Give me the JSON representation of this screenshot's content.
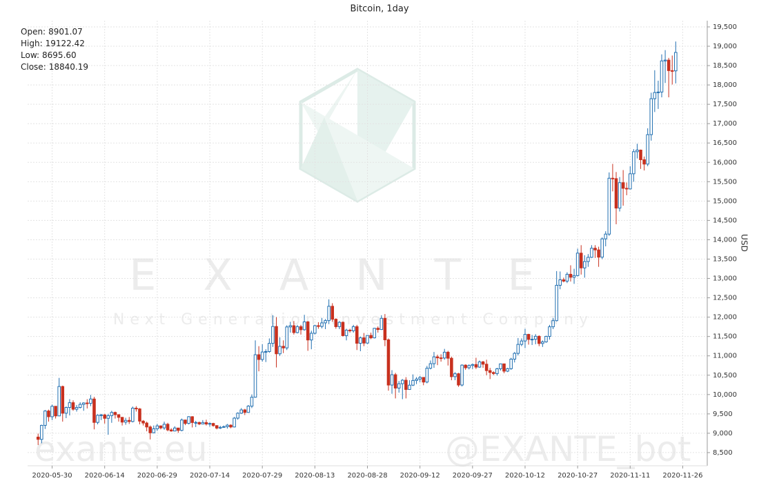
{
  "chart_data": {
    "type": "candlestick",
    "title": "Bitcoin, 1day",
    "y_label": "USD",
    "summary": {
      "labels": [
        "Open:",
        "High:",
        "Low:",
        "Close:"
      ],
      "values": [
        8901.07,
        19122.42,
        8695.6,
        18840.19
      ],
      "value_labels": [
        "8901.07",
        "19122.42",
        "8695.60",
        "18840.19"
      ]
    },
    "watermarks": {
      "brand": "EXANTE",
      "tagline": "Next Generation Investment Company",
      "site": "exante.eu",
      "bot": "@EXANTE_bot"
    },
    "colors": {
      "up": "#1f6eb0",
      "down": "#c8301e"
    },
    "grid": true,
    "x": [
      "2020-05-26",
      "2020-05-27",
      "2020-05-28",
      "2020-05-29",
      "2020-05-30",
      "2020-05-31",
      "2020-06-01",
      "2020-06-02",
      "2020-06-03",
      "2020-06-04",
      "2020-06-05",
      "2020-06-06",
      "2020-06-07",
      "2020-06-08",
      "2020-06-09",
      "2020-06-10",
      "2020-06-11",
      "2020-06-12",
      "2020-06-13",
      "2020-06-14",
      "2020-06-15",
      "2020-06-16",
      "2020-06-17",
      "2020-06-18",
      "2020-06-19",
      "2020-06-20",
      "2020-06-21",
      "2020-06-22",
      "2020-06-23",
      "2020-06-24",
      "2020-06-25",
      "2020-06-26",
      "2020-06-27",
      "2020-06-28",
      "2020-06-29",
      "2020-06-30",
      "2020-07-01",
      "2020-07-02",
      "2020-07-03",
      "2020-07-04",
      "2020-07-05",
      "2020-07-06",
      "2020-07-07",
      "2020-07-08",
      "2020-07-09",
      "2020-07-10",
      "2020-07-11",
      "2020-07-12",
      "2020-07-13",
      "2020-07-14",
      "2020-07-15",
      "2020-07-16",
      "2020-07-17",
      "2020-07-18",
      "2020-07-19",
      "2020-07-20",
      "2020-07-21",
      "2020-07-22",
      "2020-07-23",
      "2020-07-24",
      "2020-07-25",
      "2020-07-26",
      "2020-07-27",
      "2020-07-28",
      "2020-07-29",
      "2020-07-30",
      "2020-07-31",
      "2020-08-01",
      "2020-08-02",
      "2020-08-03",
      "2020-08-04",
      "2020-08-05",
      "2020-08-06",
      "2020-08-07",
      "2020-08-08",
      "2020-08-09",
      "2020-08-10",
      "2020-08-11",
      "2020-08-12",
      "2020-08-13",
      "2020-08-14",
      "2020-08-15",
      "2020-08-16",
      "2020-08-17",
      "2020-08-18",
      "2020-08-19",
      "2020-08-20",
      "2020-08-21",
      "2020-08-22",
      "2020-08-23",
      "2020-08-24",
      "2020-08-25",
      "2020-08-26",
      "2020-08-27",
      "2020-08-28",
      "2020-08-29",
      "2020-08-30",
      "2020-08-31",
      "2020-09-01",
      "2020-09-02",
      "2020-09-03",
      "2020-09-04",
      "2020-09-05",
      "2020-09-06",
      "2020-09-07",
      "2020-09-08",
      "2020-09-09",
      "2020-09-10",
      "2020-09-11",
      "2020-09-12",
      "2020-09-13",
      "2020-09-14",
      "2020-09-15",
      "2020-09-16",
      "2020-09-17",
      "2020-09-18",
      "2020-09-19",
      "2020-09-20",
      "2020-09-21",
      "2020-09-22",
      "2020-09-23",
      "2020-09-24",
      "2020-09-25",
      "2020-09-26",
      "2020-09-27",
      "2020-09-28",
      "2020-09-29",
      "2020-09-30",
      "2020-10-01",
      "2020-10-02",
      "2020-10-03",
      "2020-10-04",
      "2020-10-05",
      "2020-10-06",
      "2020-10-07",
      "2020-10-08",
      "2020-10-09",
      "2020-10-10",
      "2020-10-11",
      "2020-10-12",
      "2020-10-13",
      "2020-10-14",
      "2020-10-15",
      "2020-10-16",
      "2020-10-17",
      "2020-10-18",
      "2020-10-19",
      "2020-10-20",
      "2020-10-21",
      "2020-10-22",
      "2020-10-23",
      "2020-10-24",
      "2020-10-25",
      "2020-10-26",
      "2020-10-27",
      "2020-10-28",
      "2020-10-29",
      "2020-10-30",
      "2020-10-31",
      "2020-11-01",
      "2020-11-02",
      "2020-11-03",
      "2020-11-04",
      "2020-11-05",
      "2020-11-06",
      "2020-11-07",
      "2020-11-08",
      "2020-11-09",
      "2020-11-10",
      "2020-11-11",
      "2020-11-12",
      "2020-11-13",
      "2020-11-14",
      "2020-11-15",
      "2020-11-16",
      "2020-11-17",
      "2020-11-18",
      "2020-11-19",
      "2020-11-20",
      "2020-11-21",
      "2020-11-22",
      "2020-11-23",
      "2020-11-24"
    ],
    "open": [
      8901.07,
      8842,
      9204,
      9575,
      9427,
      9697,
      9448,
      10208,
      9518,
      9666,
      9790,
      9621,
      9666,
      9746,
      9782,
      9772,
      9885,
      9280,
      9465,
      9474,
      9386,
      9454,
      9538,
      9480,
      9411,
      9288,
      9332,
      9303,
      9648,
      9629,
      9313,
      9264,
      9162,
      9012,
      9116,
      9190,
      9138,
      9232,
      9086,
      9058,
      9135,
      9073,
      9342,
      9253,
      9428,
      9277,
      9278,
      9240,
      9277,
      9239,
      9253,
      9197,
      9133,
      9154,
      9170,
      9209,
      9162,
      9390,
      9518,
      9603,
      9538,
      9700,
      9931,
      11029,
      10906,
      11100,
      11111,
      11323,
      11759,
      11053,
      11246,
      11205,
      11747,
      11779,
      11601,
      11754,
      11675,
      11878,
      11410,
      11584,
      11780,
      11760,
      11852,
      11911,
      12281,
      11946,
      11754,
      11866,
      11522,
      11664,
      11647,
      11754,
      11325,
      11466,
      11330,
      11527,
      11465,
      11712,
      11680,
      11970,
      11414,
      10245,
      10512,
      10167,
      10280,
      10370,
      10131,
      10242,
      10363,
      10400,
      10443,
      10323,
      10680,
      10797,
      10974,
      10948,
      10944,
      11094,
      10938,
      10462,
      10538,
      10246,
      10760,
      10692,
      10750,
      10775,
      10709,
      10844,
      10784,
      10619,
      10570,
      10542,
      10666,
      10793,
      10604,
      10668,
      10915,
      11064,
      11296,
      11384,
      11555,
      11425,
      11429,
      11505,
      11319,
      11360,
      11503,
      11751,
      11909,
      12823,
      12965,
      12931,
      13108,
      13031,
      13075,
      13654,
      13272,
      13437,
      13546,
      13781,
      13737,
      13550,
      14023,
      14146,
      15590,
      15579,
      14818,
      15475,
      15329,
      15313,
      15705,
      16276,
      16317,
      16068,
      15955,
      16716,
      17645,
      17804,
      17817,
      18621,
      18642,
      18370,
      18364
    ],
    "high": [
      8990,
      9220,
      9600,
      9610,
      9740,
      9700,
      10430,
      10230,
      9690,
      9880,
      9850,
      9730,
      9800,
      9800,
      9880,
      9990,
      9940,
      9490,
      9500,
      9500,
      9500,
      9580,
      9560,
      9490,
      9420,
      9400,
      9420,
      9690,
      9700,
      9650,
      9340,
      9300,
      9200,
      9200,
      9240,
      9200,
      9300,
      9270,
      9130,
      9180,
      9140,
      9380,
      9350,
      9440,
      9440,
      9320,
      9300,
      9340,
      9350,
      9280,
      9270,
      9210,
      9190,
      9200,
      9240,
      9230,
      9420,
      9540,
      9650,
      9630,
      9730,
      10000,
      11400,
      11250,
      11300,
      11170,
      11450,
      12050,
      12000,
      11480,
      11400,
      11790,
      11880,
      11900,
      11800,
      11800,
      12060,
      11900,
      11650,
      11800,
      11870,
      11980,
      11950,
      12460,
      12360,
      11970,
      11900,
      11890,
      11700,
      11700,
      11800,
      11800,
      11500,
      11590,
      11530,
      11600,
      11720,
      11760,
      12050,
      12080,
      11450,
      10630,
      10560,
      10350,
      10400,
      10450,
      10370,
      10520,
      10450,
      10480,
      10450,
      10740,
      10880,
      11100,
      11030,
      11040,
      11180,
      11130,
      10980,
      10580,
      10560,
      10780,
      10780,
      10780,
      10800,
      10950,
      10880,
      10870,
      10900,
      10690,
      10600,
      10690,
      10800,
      10800,
      10690,
      10950,
      11100,
      11460,
      11450,
      11700,
      11570,
      11540,
      11560,
      11530,
      11400,
      11520,
      11800,
      11980,
      13190,
      13180,
      13020,
      13160,
      13340,
      13250,
      13770,
      13860,
      13600,
      13630,
      13860,
      13860,
      13820,
      14060,
      14220,
      15740,
      15960,
      15750,
      15620,
      15800,
      15480,
      15900,
      16340,
      16480,
      16330,
      16150,
      16880,
      17800,
      18380,
      18110,
      18790,
      18900,
      18700,
      18760,
      19122.42
    ],
    "low": [
      8695.6,
      8740,
      9110,
      9300,
      9340,
      9380,
      9440,
      9300,
      9390,
      9460,
      9580,
      9560,
      9640,
      9580,
      9640,
      9700,
      9100,
      9230,
      9340,
      9250,
      8960,
      9270,
      9380,
      9300,
      9200,
      9220,
      9240,
      9280,
      9560,
      9230,
      9200,
      9050,
      8840,
      9000,
      9060,
      9100,
      9090,
      9050,
      9040,
      9050,
      9010,
      9050,
      9210,
      9230,
      9150,
      9160,
      9210,
      9240,
      9200,
      9170,
      9170,
      9100,
      9110,
      9140,
      9120,
      9130,
      9150,
      9350,
      9500,
      9470,
      9530,
      9650,
      9920,
      10600,
      10850,
      10840,
      11080,
      11230,
      10700,
      11000,
      11070,
      11150,
      11600,
      11550,
      11580,
      11550,
      11650,
      11130,
      11170,
      11550,
      11700,
      11710,
      11690,
      11820,
      11880,
      11700,
      11690,
      11500,
      11400,
      11600,
      11600,
      11150,
      11120,
      11250,
      11310,
      11430,
      11450,
      11600,
      11670,
      11250,
      10100,
      10020,
      9900,
      10050,
      9880,
      9900,
      10120,
      10220,
      10270,
      10320,
      10240,
      10290,
      10650,
      10690,
      10760,
      10850,
      10900,
      10750,
      10370,
      10370,
      10200,
      10210,
      10640,
      10650,
      10660,
      10660,
      10690,
      10690,
      10500,
      10400,
      10500,
      10490,
      10620,
      10550,
      10580,
      10640,
      10830,
      11010,
      11250,
      11200,
      11290,
      11280,
      11300,
      11250,
      11230,
      11340,
      11420,
      11690,
      11890,
      12720,
      12900,
      12880,
      12920,
      12860,
      13050,
      13100,
      13020,
      13300,
      13530,
      13530,
      13300,
      13500,
      13830,
      14100,
      15250,
      14400,
      14730,
      14880,
      15150,
      15300,
      15500,
      16100,
      15830,
      15790,
      15900,
      16560,
      17300,
      17380,
      17680,
      18050,
      17680,
      18010,
      18040
    ],
    "close": [
      8842,
      9204,
      9575,
      9427,
      9697,
      9448,
      10208,
      9518,
      9666,
      9790,
      9621,
      9666,
      9746,
      9782,
      9772,
      9885,
      9280,
      9465,
      9474,
      9386,
      9454,
      9538,
      9480,
      9411,
      9288,
      9332,
      9303,
      9648,
      9629,
      9313,
      9264,
      9162,
      9012,
      9116,
      9190,
      9138,
      9232,
      9086,
      9058,
      9135,
      9073,
      9342,
      9253,
      9428,
      9277,
      9278,
      9240,
      9277,
      9239,
      9253,
      9197,
      9133,
      9154,
      9170,
      9209,
      9162,
      9390,
      9518,
      9603,
      9538,
      9700,
      9931,
      11029,
      10906,
      11100,
      11111,
      11323,
      11759,
      11053,
      11246,
      11205,
      11747,
      11779,
      11601,
      11754,
      11675,
      11878,
      11410,
      11584,
      11780,
      11760,
      11852,
      11911,
      12281,
      11946,
      11754,
      11866,
      11522,
      11664,
      11647,
      11754,
      11325,
      11466,
      11330,
      11527,
      11465,
      11712,
      11680,
      11970,
      11414,
      10245,
      10512,
      10167,
      10280,
      10370,
      10131,
      10242,
      10363,
      10400,
      10443,
      10323,
      10680,
      10797,
      10974,
      10948,
      10944,
      11094,
      10938,
      10462,
      10538,
      10246,
      10760,
      10692,
      10750,
      10775,
      10709,
      10844,
      10784,
      10619,
      10570,
      10542,
      10666,
      10793,
      10604,
      10668,
      10915,
      11064,
      11296,
      11384,
      11555,
      11425,
      11429,
      11505,
      11319,
      11360,
      11503,
      11751,
      11909,
      12823,
      12965,
      12931,
      13108,
      13031,
      13075,
      13654,
      13272,
      13437,
      13546,
      13781,
      13737,
      13550,
      14023,
      14146,
      15590,
      15579,
      14818,
      15475,
      15329,
      15313,
      15705,
      16276,
      16317,
      16068,
      15955,
      16716,
      17645,
      17804,
      17817,
      18621,
      18642,
      18370,
      18364,
      18840.19
    ],
    "xlim": [
      "2020-05-23",
      "2020-12-03"
    ],
    "xticks": [
      "2020-05-30",
      "2020-06-14",
      "2020-06-29",
      "2020-07-14",
      "2020-07-29",
      "2020-08-13",
      "2020-08-28",
      "2020-09-12",
      "2020-09-27",
      "2020-10-12",
      "2020-10-27",
      "2020-11-11",
      "2020-11-26"
    ],
    "ylim": [
      8160,
      19660
    ],
    "yticks": [
      {
        "value": 8500,
        "label": "8,500"
      },
      {
        "value": 9000,
        "label": "9,000"
      },
      {
        "value": 9500,
        "label": "9,500"
      },
      {
        "value": 10000,
        "label": "10,000"
      },
      {
        "value": 10500,
        "label": "10,500"
      },
      {
        "value": 11000,
        "label": "11,000"
      },
      {
        "value": 11500,
        "label": "11,500"
      },
      {
        "value": 12000,
        "label": "12,000"
      },
      {
        "value": 12500,
        "label": "12,500"
      },
      {
        "value": 13000,
        "label": "13,000"
      },
      {
        "value": 13500,
        "label": "13,500"
      },
      {
        "value": 14000,
        "label": "14,000"
      },
      {
        "value": 14500,
        "label": "14,500"
      },
      {
        "value": 15000,
        "label": "15,000"
      },
      {
        "value": 15500,
        "label": "15,500"
      },
      {
        "value": 16000,
        "label": "16,000"
      },
      {
        "value": 16500,
        "label": "16,500"
      },
      {
        "value": 17000,
        "label": "17,000"
      },
      {
        "value": 17500,
        "label": "17,500"
      },
      {
        "value": 18000,
        "label": "18,000"
      },
      {
        "value": 18500,
        "label": "18,500"
      },
      {
        "value": 19000,
        "label": "19,000"
      },
      {
        "value": 19500,
        "label": "19,500"
      }
    ]
  }
}
